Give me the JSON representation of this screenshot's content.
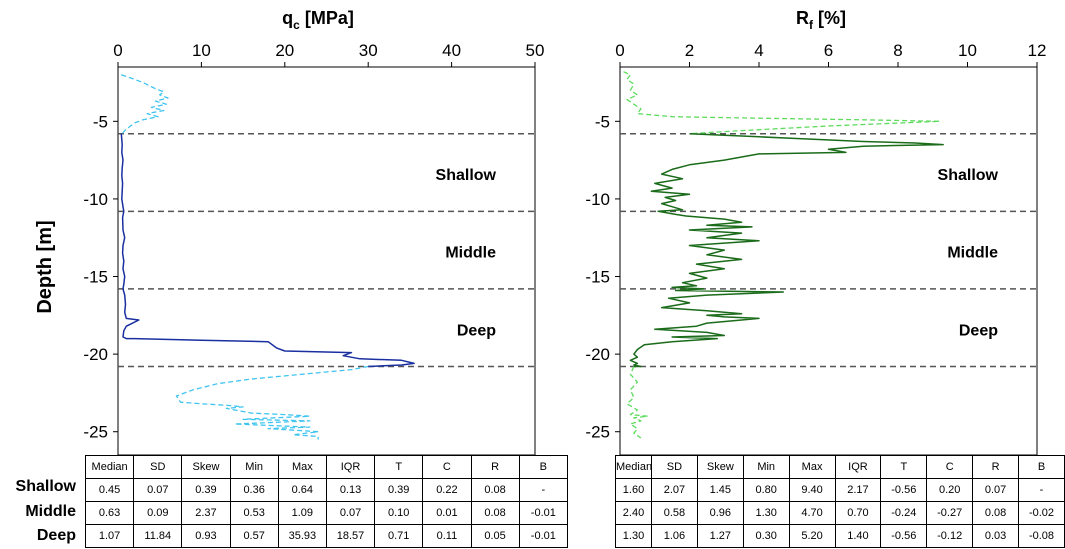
{
  "chart_data": [
    {
      "type": "line",
      "title": "q",
      "title_sub": "c",
      "title_unit": " [MPa]",
      "xlabel_position": "top",
      "ylabel": "Depth [m]",
      "xlim": [
        0,
        50
      ],
      "ylim": [
        -26.5,
        -1.5
      ],
      "xticks": [
        0,
        10,
        20,
        30,
        40,
        50
      ],
      "yticks": [
        -5,
        -10,
        -15,
        -20,
        -25
      ],
      "grid": false,
      "layer_boundaries": [
        -5.8,
        -10.8,
        -15.8,
        -20.8
      ],
      "layer_labels": [
        {
          "text": "Shallow",
          "depth": -8.4
        },
        {
          "text": "Middle",
          "depth": -13.4
        },
        {
          "text": "Deep",
          "depth": -18.4
        }
      ],
      "series": [
        {
          "segment": "outside",
          "color": "#3fc4f0",
          "dashed": true,
          "x": [
            0.4,
            1.5,
            3,
            4.5,
            5.5,
            5,
            6,
            4.5,
            5.8,
            4,
            5.5,
            3.5,
            4.8,
            3,
            2,
            1.5,
            0.8,
            0.5
          ],
          "y": [
            -2,
            -2.2,
            -2.5,
            -2.9,
            -3.1,
            -3.3,
            -3.5,
            -3.7,
            -3.9,
            -4.1,
            -4.3,
            -4.5,
            -4.7,
            -4.9,
            -5.1,
            -5.3,
            -5.6,
            -5.8
          ]
        },
        {
          "segment": "inside",
          "color": "#1a2fa0",
          "dashed": false,
          "x": [
            0.4,
            0.5,
            0.45,
            0.6,
            0.5,
            0.45,
            0.55,
            0.5,
            0.45,
            0.6,
            0.7,
            0.55,
            0.6,
            0.8,
            0.6,
            0.55,
            0.7,
            0.6,
            0.8,
            0.7,
            0.6,
            0.8,
            0.9,
            0.8,
            1.0,
            2.5,
            1.0,
            0.7,
            0.6,
            1.0,
            2,
            10,
            18,
            19,
            20,
            28,
            27,
            29,
            34,
            35.5,
            34,
            30
          ],
          "y": [
            -5.8,
            -6.5,
            -7,
            -7.5,
            -8,
            -8.5,
            -9,
            -9.5,
            -10,
            -10.5,
            -10.8,
            -11.2,
            -12,
            -12.5,
            -13,
            -13.5,
            -14,
            -14.5,
            -15,
            -15.5,
            -15.8,
            -16.2,
            -16.8,
            -17.3,
            -17.7,
            -17.8,
            -18.2,
            -18.5,
            -18.9,
            -19,
            -19,
            -19.1,
            -19.2,
            -19.6,
            -19.8,
            -19.9,
            -20.1,
            -20.3,
            -20.4,
            -20.6,
            -20.7,
            -20.8
          ]
        },
        {
          "segment": "outside",
          "color": "#3fc4f0",
          "dashed": true,
          "x": [
            30,
            28,
            22,
            16,
            12,
            9,
            7,
            7.5,
            10,
            13,
            15,
            13,
            15,
            16,
            20,
            23,
            15,
            23,
            14,
            23,
            18,
            24,
            21,
            24,
            24
          ],
          "y": [
            -20.8,
            -21,
            -21.3,
            -21.6,
            -21.9,
            -22.3,
            -22.7,
            -23.1,
            -23.2,
            -23.3,
            -23.4,
            -23.5,
            -23.7,
            -23.8,
            -23.9,
            -24,
            -24.2,
            -24.3,
            -24.5,
            -24.7,
            -24.8,
            -25,
            -25.2,
            -25.3,
            -25.5
          ]
        }
      ]
    },
    {
      "type": "line",
      "title": "R",
      "title_sub": "f",
      "title_unit": " [%]",
      "xlabel_position": "top",
      "xlim": [
        0,
        12
      ],
      "ylim": [
        -26.5,
        -1.5
      ],
      "xticks": [
        0,
        2,
        4,
        6,
        8,
        10,
        12
      ],
      "yticks": [
        -5,
        -10,
        -15,
        -20,
        -25
      ],
      "grid": false,
      "layer_boundaries": [
        -5.8,
        -10.8,
        -15.8,
        -20.8
      ],
      "layer_labels": [
        {
          "text": "Shallow",
          "depth": -8.4
        },
        {
          "text": "Middle",
          "depth": -13.4
        },
        {
          "text": "Deep",
          "depth": -18.4
        }
      ],
      "series": [
        {
          "segment": "outside",
          "color": "#5edb5e",
          "dashed": true,
          "x": [
            0.1,
            0.3,
            0.2,
            0.4,
            0.3,
            0.5,
            0.2,
            0.4,
            0.6,
            0.5,
            1.5,
            4,
            7,
            9.2,
            6,
            3.5,
            2
          ],
          "y": [
            -1.8,
            -2,
            -2.3,
            -2.6,
            -3,
            -3.3,
            -3.6,
            -3.9,
            -4.2,
            -4.5,
            -4.7,
            -4.8,
            -4.9,
            -5,
            -5.3,
            -5.6,
            -5.8
          ]
        },
        {
          "segment": "inside",
          "color": "#1a6b1a",
          "dashed": false,
          "x": [
            2,
            3,
            4,
            5,
            7,
            8.5,
            9.3,
            7,
            6,
            6.5,
            4,
            3.5,
            3,
            2,
            1.5,
            1.2,
            1.8,
            1,
            1.5,
            0.9,
            2,
            1.3,
            1.6,
            1.2,
            1.5,
            1.8,
            1.1,
            1.6,
            1.9,
            3,
            3.5,
            2.5,
            3.8,
            2,
            3.5,
            2.5,
            4,
            2,
            3,
            2.5,
            3.5,
            2.2,
            3,
            2,
            2.5,
            1.8,
            2.2,
            1.5,
            2.4,
            1.6,
            4.7,
            2.5,
            1.4,
            2,
            1.2,
            2.5,
            3.5,
            2.5,
            3,
            4,
            3.5,
            2.5,
            2.2,
            1,
            2.5,
            3,
            1.5,
            2.8,
            1.5,
            0.7,
            0.5,
            0.4,
            0.5,
            0.3,
            0.5,
            0.4,
            0.6,
            0.4
          ],
          "y": [
            -5.8,
            -5.9,
            -6,
            -6.1,
            -6.3,
            -6.4,
            -6.5,
            -6.6,
            -6.8,
            -7,
            -7.1,
            -7.3,
            -7.5,
            -7.8,
            -8.1,
            -8.4,
            -8.7,
            -9,
            -9.3,
            -9.5,
            -9.7,
            -9.9,
            -10.1,
            -10.3,
            -10.5,
            -10.7,
            -10.8,
            -11,
            -11.1,
            -11.3,
            -11.5,
            -11.7,
            -11.8,
            -12,
            -12.2,
            -12.5,
            -12.7,
            -13,
            -13.3,
            -13.6,
            -13.9,
            -14.2,
            -14.5,
            -14.8,
            -15.1,
            -15.4,
            -15.6,
            -15.7,
            -15.8,
            -15.9,
            -16,
            -16.2,
            -16.4,
            -16.7,
            -17,
            -17.2,
            -17.4,
            -17.5,
            -17.6,
            -17.7,
            -17.8,
            -18,
            -18.2,
            -18.4,
            -18.6,
            -18.8,
            -18.9,
            -19,
            -19.2,
            -19.4,
            -19.7,
            -20,
            -20.2,
            -20.4,
            -20.6,
            -20.7,
            -20.8,
            -20.8
          ]
        },
        {
          "segment": "outside",
          "color": "#5edb5e",
          "dashed": true,
          "x": [
            0.4,
            0.3,
            0.5,
            0.3,
            0.4,
            0.2,
            0.5,
            0.3,
            0.8,
            0.4,
            0.6,
            0.3,
            0.5,
            0.4,
            0.6
          ],
          "y": [
            -20.8,
            -21.3,
            -21.8,
            -22.3,
            -22.8,
            -23.2,
            -23.6,
            -23.9,
            -24,
            -24.1,
            -24.3,
            -24.5,
            -24.8,
            -25.1,
            -25.4
          ]
        }
      ]
    }
  ],
  "tables": {
    "row_labels": [
      "Shallow",
      "Middle",
      "Deep"
    ],
    "headers": [
      "Median",
      "SD",
      "Skew",
      "Min",
      "Max",
      "IQR",
      "T",
      "C",
      "R",
      "B"
    ],
    "left": [
      [
        "0.45",
        "0.07",
        "0.39",
        "0.36",
        "0.64",
        "0.13",
        "0.39",
        "0.22",
        "0.08",
        "-"
      ],
      [
        "0.63",
        "0.09",
        "2.37",
        "0.53",
        "1.09",
        "0.07",
        "0.10",
        "0.01",
        "0.08",
        "-0.01"
      ],
      [
        "1.07",
        "11.84",
        "0.93",
        "0.57",
        "35.93",
        "18.57",
        "0.71",
        "0.11",
        "0.05",
        "-0.01"
      ]
    ],
    "right": [
      [
        "1.60",
        "2.07",
        "1.45",
        "0.80",
        "9.40",
        "2.17",
        "-0.56",
        "0.20",
        "0.07",
        "-"
      ],
      [
        "2.40",
        "0.58",
        "0.96",
        "1.30",
        "4.70",
        "0.70",
        "-0.24",
        "-0.27",
        "0.08",
        "-0.02"
      ],
      [
        "1.30",
        "1.06",
        "1.27",
        "0.30",
        "5.20",
        "1.40",
        "-0.56",
        "-0.12",
        "0.03",
        "-0.08"
      ]
    ]
  }
}
